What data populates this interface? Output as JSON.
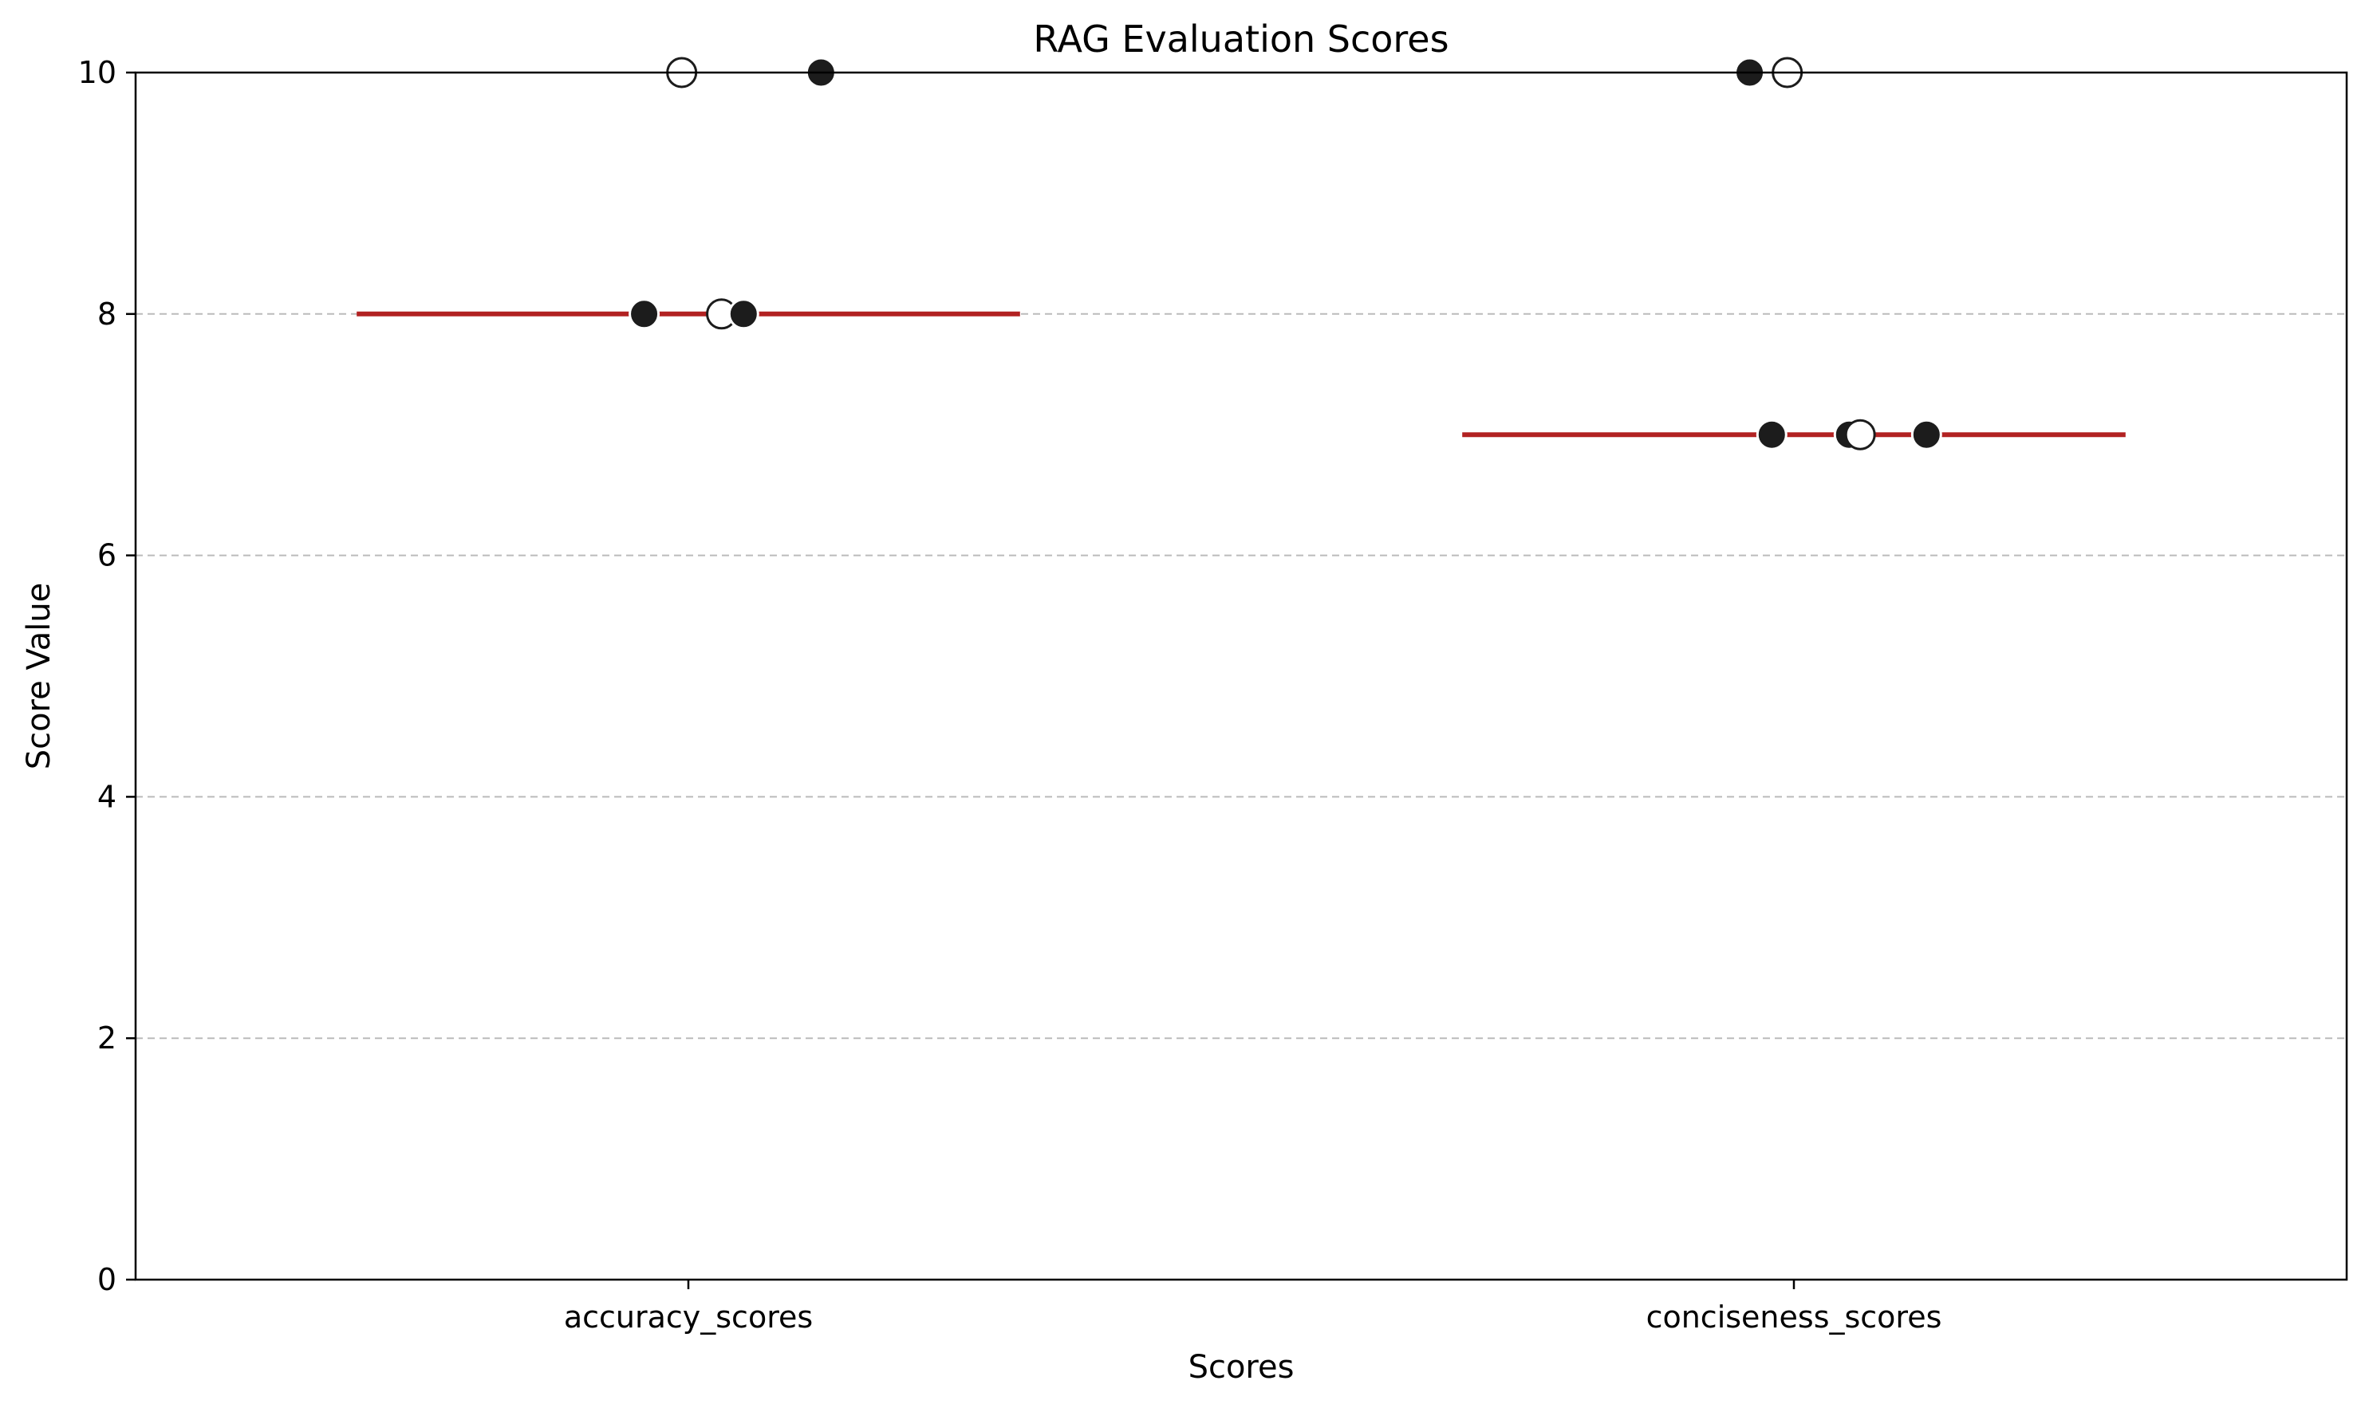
{
  "chart_data": {
    "type": "scatter",
    "title": "RAG Evaluation Scores",
    "xlabel": "Scores",
    "ylabel": "Score Value",
    "ylim": [
      0,
      10
    ],
    "yticks": [
      "0",
      "2",
      "4",
      "6",
      "8",
      "10"
    ],
    "grid": "y-dashed",
    "categories": [
      "accuracy_scores",
      "conciseness_scores"
    ],
    "groups": [
      {
        "category": "accuracy_scores",
        "median": 8,
        "points": [
          {
            "offset": -0.02,
            "value": 8,
            "style": "filled"
          },
          {
            "offset": 0.015,
            "value": 8,
            "style": "hollow"
          },
          {
            "offset": 0.025,
            "value": 8,
            "style": "filled"
          },
          {
            "offset": -0.003,
            "value": 10,
            "style": "hollow"
          },
          {
            "offset": 0.06,
            "value": 10,
            "style": "filled"
          }
        ]
      },
      {
        "category": "conciseness_scores",
        "median": 7,
        "points": [
          {
            "offset": -0.01,
            "value": 7,
            "style": "filled"
          },
          {
            "offset": 0.025,
            "value": 7,
            "style": "filled"
          },
          {
            "offset": 0.03,
            "value": 7,
            "style": "hollow"
          },
          {
            "offset": 0.06,
            "value": 7,
            "style": "filled"
          },
          {
            "offset": -0.02,
            "value": 10,
            "style": "filled"
          },
          {
            "offset": -0.003,
            "value": 10,
            "style": "hollow"
          }
        ]
      }
    ],
    "colors": {
      "point": "#1c1c1c",
      "median": "#b22222",
      "grid": "#bbbbbb",
      "axis": "#000000"
    }
  }
}
